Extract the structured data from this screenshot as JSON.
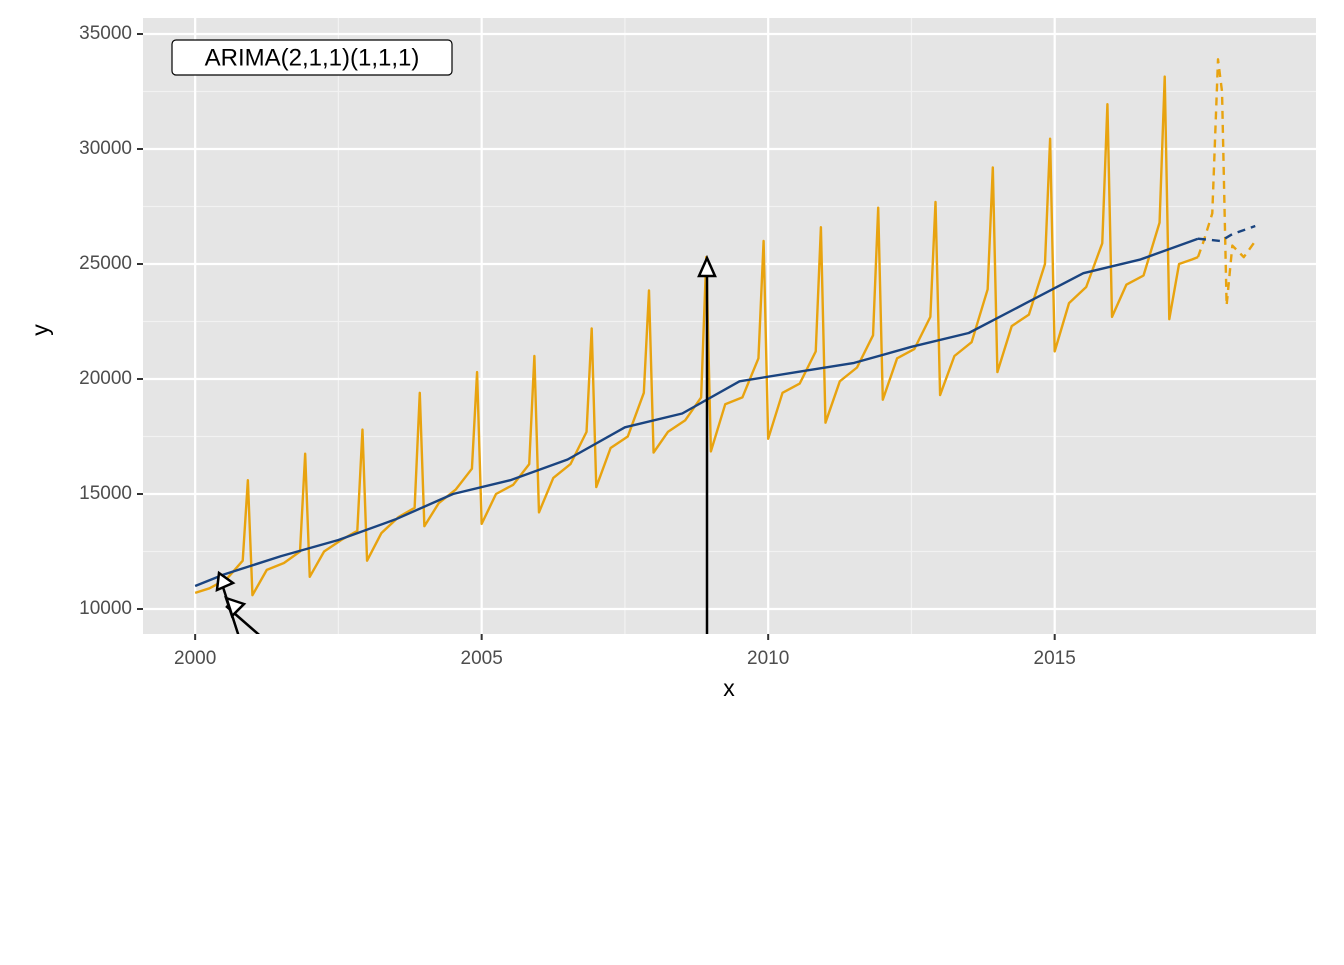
{
  "chart_data": {
    "type": "line",
    "annotation": "ARIMA(2,1,1)(1,1,1)",
    "x_label": "x",
    "y_label": "y",
    "xlim": [
      1999.09,
      2019.56
    ],
    "xticks": [
      2000,
      2005,
      2010,
      2015
    ],
    "ylim": [
      8913,
      35696
    ],
    "yticks": [
      10000,
      15000,
      20000,
      25000,
      30000,
      35000
    ],
    "grid": true,
    "series": [
      {
        "color": "#e8a30f",
        "dashed": false,
        "x": [
          2000,
          2000.25,
          2000.55,
          2000.83,
          2000.92,
          2001,
          2001.25,
          2001.55,
          2001.83,
          2001.92,
          2002,
          2002.25,
          2002.55,
          2002.83,
          2002.92,
          2003,
          2003.25,
          2003.55,
          2003.83,
          2003.92,
          2004,
          2004.25,
          2004.55,
          2004.83,
          2004.92,
          2005,
          2005.25,
          2005.55,
          2005.83,
          2005.92,
          2006,
          2006.25,
          2006.55,
          2006.83,
          2006.92,
          2007,
          2007.25,
          2007.55,
          2007.83,
          2007.92,
          2008,
          2008.25,
          2008.55,
          2008.83,
          2008.92,
          2009,
          2009.25,
          2009.55,
          2009.83,
          2009.92,
          2010,
          2010.25,
          2010.55,
          2010.83,
          2010.92,
          2011,
          2011.25,
          2011.55,
          2011.83,
          2011.92,
          2012,
          2012.25,
          2012.55,
          2012.83,
          2012.92,
          2013,
          2013.25,
          2013.55,
          2013.83,
          2013.92,
          2014,
          2014.25,
          2014.55,
          2014.83,
          2014.92,
          2015,
          2015.25,
          2015.55,
          2015.83,
          2015.92,
          2016,
          2016.25,
          2016.55,
          2016.83,
          2016.92,
          2017,
          2017.17,
          2017.4,
          2017.5
        ],
        "values": [
          10700,
          10900,
          11300,
          12100,
          15600,
          10600,
          11700,
          12000,
          12500,
          16750,
          11400,
          12500,
          13000,
          13400,
          17800,
          12100,
          13300,
          14000,
          14400,
          19400,
          13600,
          14600,
          15200,
          16100,
          20300,
          13700,
          15000,
          15400,
          16300,
          21000,
          14200,
          15700,
          16300,
          17700,
          22200,
          15300,
          17000,
          17500,
          19400,
          23850,
          16800,
          17700,
          18200,
          19200,
          25300,
          16850,
          18900,
          19200,
          20900,
          26000,
          17400,
          19400,
          19800,
          21200,
          26600,
          18100,
          19900,
          20500,
          21900,
          27450,
          19100,
          20900,
          21300,
          22700,
          27700,
          19300,
          21000,
          21600,
          23900,
          29200,
          20300,
          22300,
          22800,
          25000,
          30450,
          21200,
          23300,
          24000,
          25900,
          31950,
          22700,
          24100,
          24500,
          26800,
          33150,
          22600,
          25000,
          25200,
          25300
        ]
      },
      {
        "color": "#1a4480",
        "dashed": false,
        "x": [
          2000,
          2000.5,
          2001.5,
          2002.5,
          2003.5,
          2004.5,
          2005.5,
          2006.5,
          2007.5,
          2008.5,
          2009.5,
          2010.5,
          2011.5,
          2012.5,
          2013.5,
          2014.5,
          2015.5,
          2016.5,
          2017.5
        ],
        "values": [
          11000,
          11500,
          12300,
          13000,
          13900,
          15000,
          15600,
          16500,
          17900,
          18500,
          19900,
          20300,
          20700,
          21400,
          22000,
          23300,
          24600,
          25200,
          26100
        ]
      },
      {
        "color": "#e8a30f",
        "dashed": true,
        "x": [
          2017.5,
          2017.6,
          2017.75,
          2017.85,
          2017.92,
          2018.0,
          2018.1,
          2018.3,
          2018.5
        ],
        "values": [
          25300,
          26000,
          27200,
          33900,
          32500,
          23200,
          25800,
          25300,
          26000
        ]
      },
      {
        "color": "#1a4480",
        "dashed": true,
        "x": [
          2017.5,
          2017.9,
          2018.1,
          2018.5
        ],
        "values": [
          26100,
          26000,
          26300,
          26650
        ]
      }
    ]
  }
}
